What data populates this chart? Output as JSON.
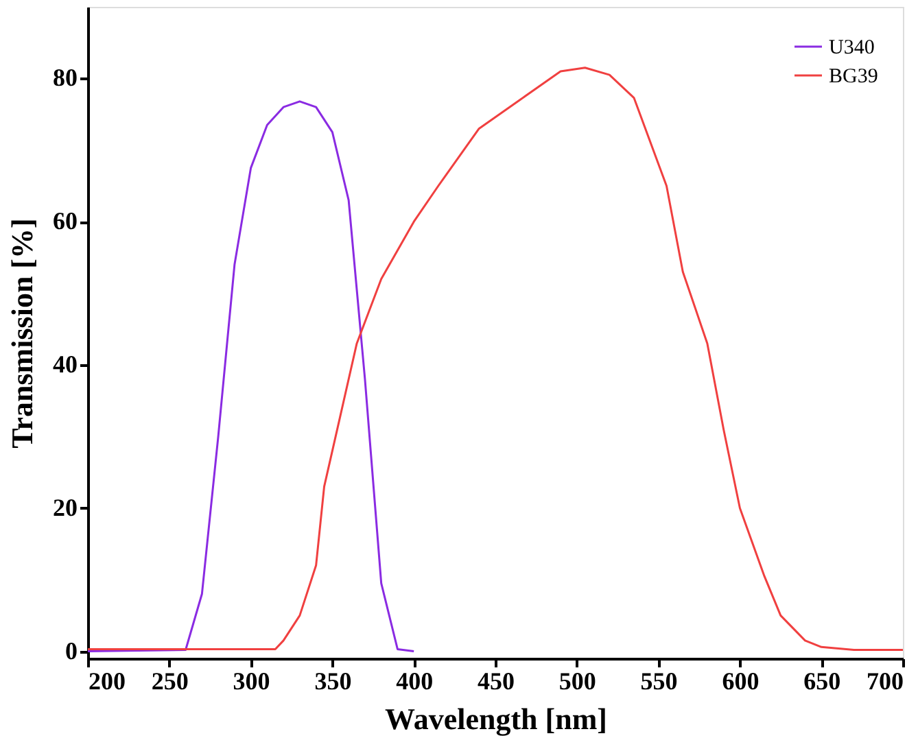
{
  "chart_data": {
    "type": "line",
    "xlabel": "Wavelength [nm]",
    "ylabel": "Transmission [%]",
    "xlim": [
      200,
      700
    ],
    "ylim": [
      -1,
      90
    ],
    "xticks": [
      200,
      250,
      300,
      350,
      400,
      450,
      500,
      550,
      600,
      650,
      700
    ],
    "yticks": [
      0,
      20,
      40,
      60,
      80
    ],
    "grid": false,
    "legend": "top right",
    "line_style": "solid",
    "marker": "none",
    "series": [
      {
        "name": "U340",
        "color": "#8a2be2",
        "x": [
          200,
          260,
          270,
          280,
          290,
          300,
          310,
          320,
          330,
          340,
          350,
          360,
          370,
          380,
          390,
          400
        ],
        "values": [
          0,
          0.2,
          8,
          30,
          54,
          67.5,
          73.5,
          76,
          76.8,
          76,
          72.5,
          63,
          38,
          9.5,
          0.3,
          0
        ]
      },
      {
        "name": "BG39",
        "color": "#f04040",
        "x": [
          200,
          250,
          300,
          315,
          320,
          330,
          340,
          345,
          355,
          365,
          380,
          400,
          415,
          440,
          465,
          490,
          505,
          520,
          535,
          555,
          565,
          580,
          590,
          600,
          615,
          625,
          640,
          650,
          670,
          700
        ],
        "values": [
          0.3,
          0.3,
          0.3,
          0.3,
          1.5,
          5,
          12,
          23,
          33,
          43,
          52,
          60,
          65,
          73,
          77,
          81,
          81.5,
          80.5,
          77.3,
          65,
          53,
          43,
          31,
          20,
          10.5,
          5,
          1.5,
          0.6,
          0.2,
          0.2
        ]
      }
    ]
  }
}
